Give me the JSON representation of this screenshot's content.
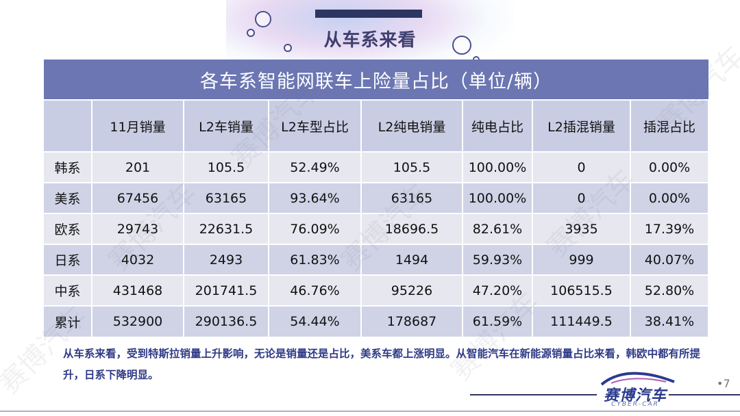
{
  "heading": "从车系来看",
  "table": {
    "title": "各车系智能网联车上险量占比（单位/辆）",
    "columns": [
      "",
      "11月销量",
      "L2车销量",
      "L2车型占比",
      "L2纯电销量",
      "纯电占比",
      "L2插混销量",
      "插混占比"
    ],
    "rows": [
      [
        "韩系",
        "201",
        "105.5",
        "52.49%",
        "105.5",
        "100.00%",
        "0",
        "0.00%"
      ],
      [
        "美系",
        "67456",
        "63165",
        "93.64%",
        "63165",
        "100.00%",
        "0",
        "0.00%"
      ],
      [
        "欧系",
        "29743",
        "22631.5",
        "76.09%",
        "18696.5",
        "82.61%",
        "3935",
        "17.39%"
      ],
      [
        "日系",
        "4032",
        "2493",
        "61.83%",
        "1494",
        "59.93%",
        "999",
        "40.07%"
      ],
      [
        "中系",
        "431468",
        "201741.5",
        "46.76%",
        "95226",
        "47.20%",
        "106515.5",
        "52.80%"
      ],
      [
        "累计",
        "532900",
        "290136.5",
        "54.44%",
        "178687",
        "61.59%",
        "111449.5",
        "38.41%"
      ]
    ]
  },
  "note": "从车系来看，受到特斯拉销量上升影响，无论是销量还是占比，美系车都上涨明显。从智能汽车在新能源销量占比来看，韩欧中都有所提升，日系下降明显。",
  "page_number": "•7",
  "logo": {
    "text": "赛博汽车",
    "sub": "CYBER-CAR"
  },
  "watermark": "赛博汽车"
}
